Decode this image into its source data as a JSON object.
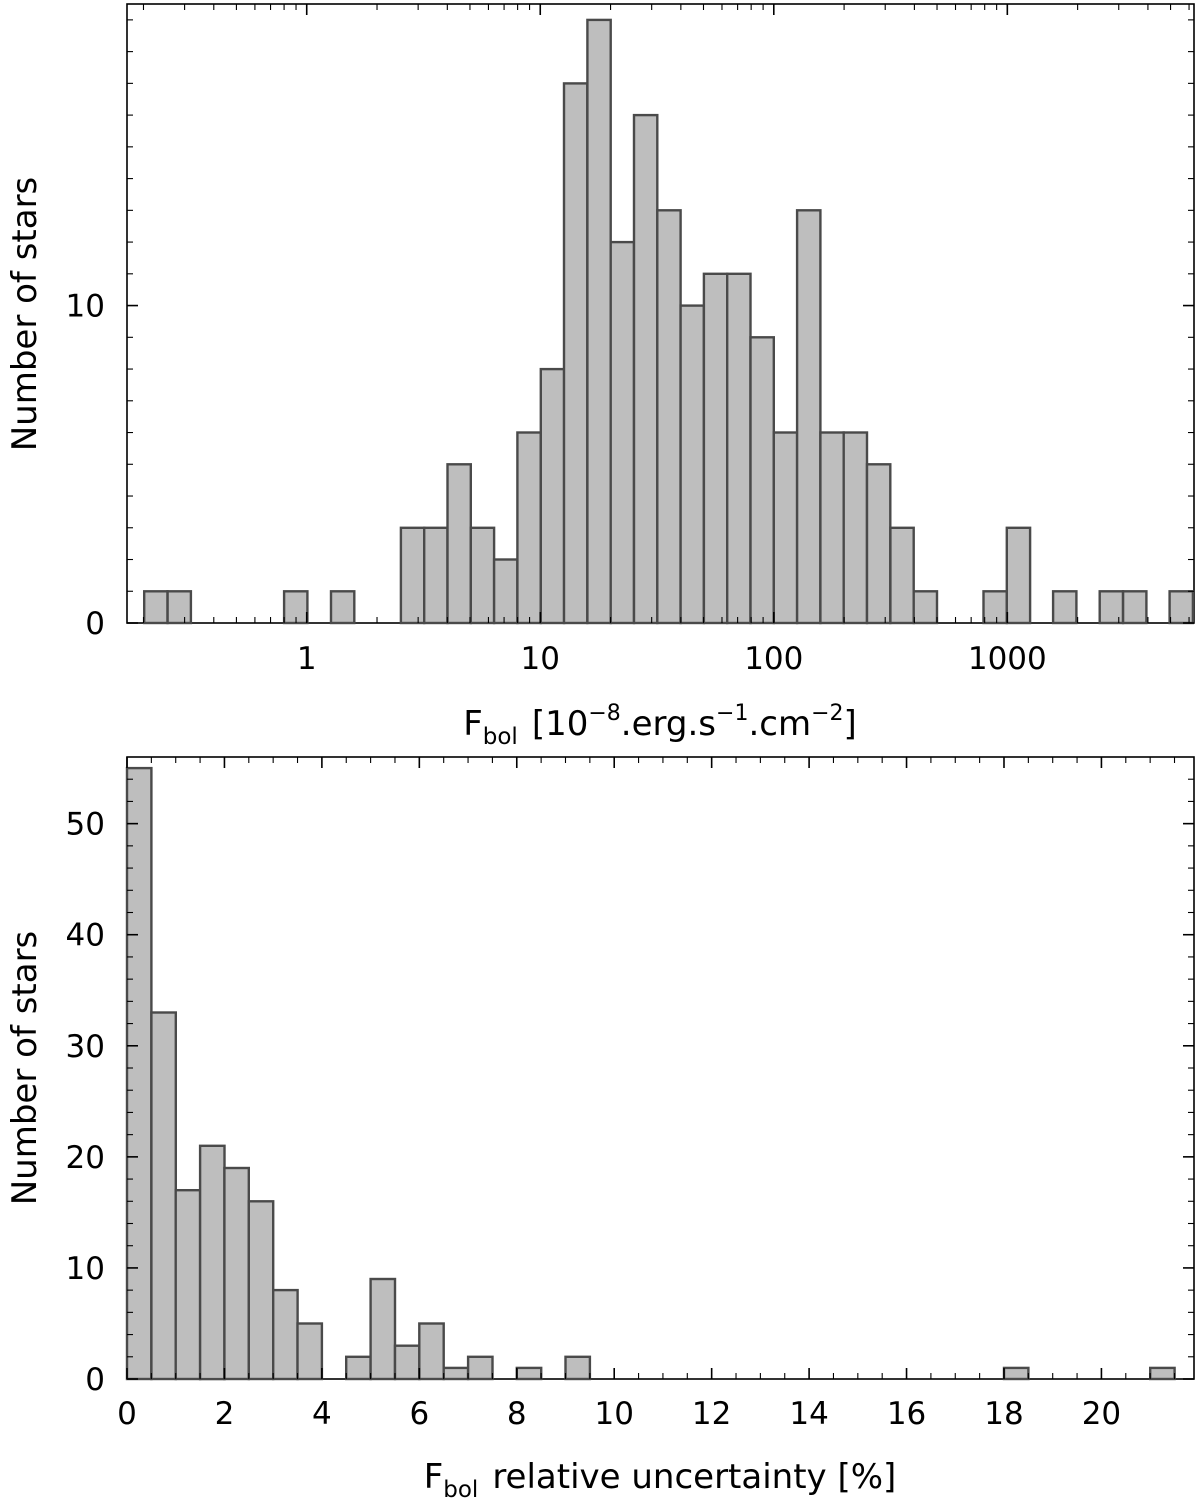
{
  "chart_data": [
    {
      "type": "bar",
      "subtype": "histogram",
      "xscale": "log",
      "title": "",
      "xlabel": {
        "base": "F",
        "subscript": "bol",
        "rest_before_exp1": "[10",
        "exp1": "−8",
        "rest_before_exp2": ".erg.s",
        "exp2": "−1",
        "rest_before_exp3": ".cm",
        "exp3": "−2",
        "rest_after": "]"
      },
      "ylabel": "Number of stars",
      "xlim": [
        0.17,
        6300
      ],
      "ylim": [
        0,
        19.5
      ],
      "bin_dex": 0.0996,
      "bins_start": [
        0.2015,
        0.2536,
        0.8,
        1.271,
        2.531,
        3.184,
        4.007,
        5.042,
        6.345,
        7.984,
        10.05,
        12.64,
        15.91,
        20.02,
        25.19,
        31.7,
        39.89,
        50.2,
        63.17,
        79.49,
        100.0,
        125.9,
        158.4,
        199.3,
        250.8,
        315.6,
        397.2,
        790.8,
        995.1,
        1571,
        2487,
        3130,
        4955
      ],
      "values": [
        1,
        1,
        1,
        1,
        3,
        3,
        5,
        3,
        2,
        6,
        8,
        17,
        19,
        12,
        16,
        13,
        10,
        11,
        11,
        9,
        6,
        13,
        6,
        6,
        5,
        3,
        1,
        1,
        3,
        1,
        1,
        1,
        1
      ],
      "xticks": [
        1,
        10,
        100,
        1000
      ],
      "xtick_labels": [
        "1",
        "10",
        "100",
        "1000"
      ],
      "yticks": [
        0,
        10
      ],
      "ytick_labels": [
        "0",
        "10"
      ],
      "grid": false
    },
    {
      "type": "bar",
      "subtype": "histogram",
      "title": "",
      "xlabel": {
        "base": "F",
        "subscript": "bol",
        "rest": "relative uncertainty [%]"
      },
      "ylabel": "Number of stars",
      "xlim": [
        0,
        21.9
      ],
      "ylim": [
        0,
        56
      ],
      "bin_width": 0.5,
      "bins_start": [
        0,
        0.5,
        1.0,
        1.5,
        2.0,
        2.5,
        3.0,
        3.5,
        4.5,
        5.0,
        5.5,
        6.0,
        6.5,
        7.0,
        8.0,
        9.0,
        18.0,
        21.0
      ],
      "values": [
        55,
        33,
        17,
        21,
        19,
        16,
        8,
        5,
        2,
        9,
        3,
        5,
        1,
        2,
        1,
        2,
        1,
        1
      ],
      "xticks": [
        0,
        2,
        4,
        6,
        8,
        10,
        12,
        14,
        16,
        18,
        20
      ],
      "xtick_labels": [
        "0",
        "2",
        "4",
        "6",
        "8",
        "10",
        "12",
        "14",
        "16",
        "18",
        "20"
      ],
      "yticks": [
        0,
        10,
        20,
        30,
        40,
        50
      ],
      "ytick_labels": [
        "0",
        "10",
        "20",
        "30",
        "40",
        "50"
      ],
      "grid": false
    }
  ]
}
